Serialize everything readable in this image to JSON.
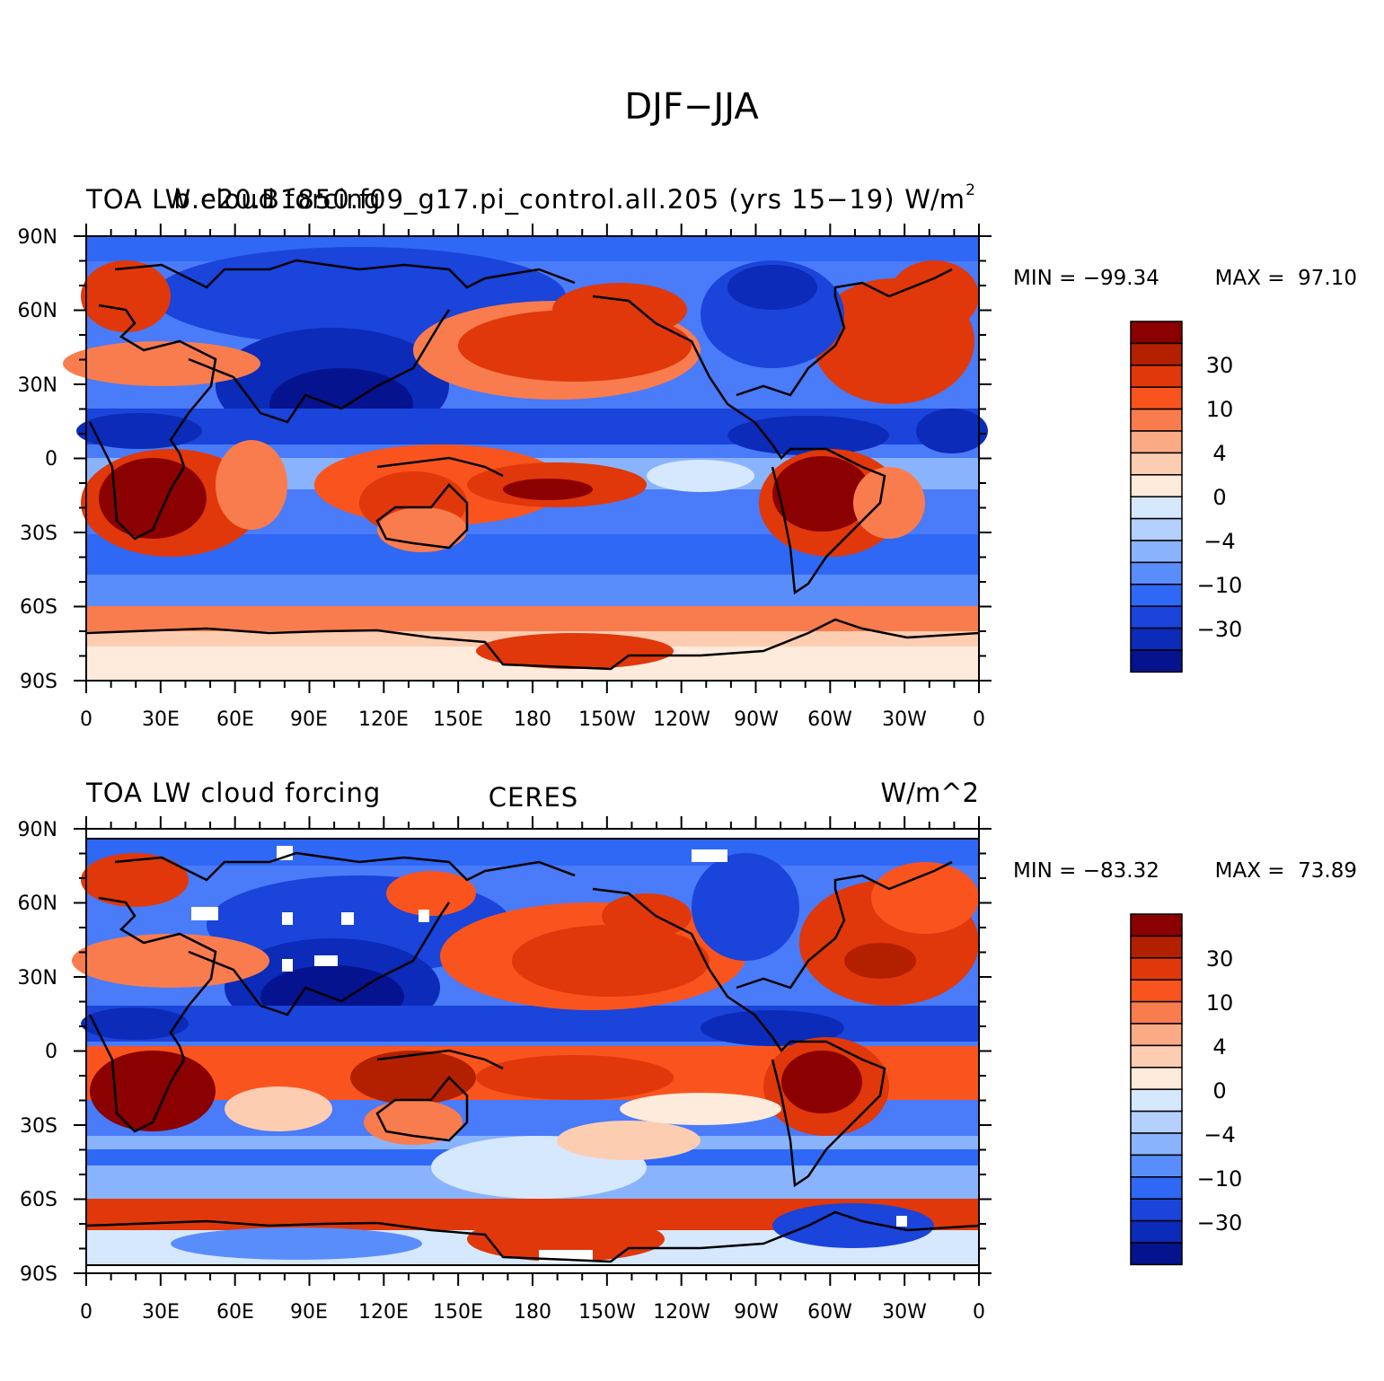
{
  "title": "DJF−JJA",
  "colorbar": {
    "colors": [
      "#8b0000",
      "#b22000",
      "#e0380a",
      "#fa541e",
      "#f97c4e",
      "#fbaa86",
      "#fdcdb2",
      "#feebdc",
      "#d6e8fe",
      "#b4d0fe",
      "#8ab3fd",
      "#5a8dfc",
      "#2f68f5",
      "#1a44da",
      "#0b2bb8",
      "#05138f"
    ],
    "labels": [
      "30",
      "10",
      "4",
      "0",
      "−4",
      "−10",
      "−30"
    ]
  },
  "axes": {
    "lat_labels": [
      "90N",
      "60N",
      "30N",
      "0",
      "30S",
      "60S",
      "90S"
    ],
    "lon_labels": [
      "0",
      "30E",
      "60E",
      "90E",
      "120E",
      "150E",
      "180",
      "150W",
      "120W",
      "90W",
      "60W",
      "30W",
      "0"
    ]
  },
  "panels": [
    {
      "left_title": "TOA LW cloud forcing",
      "center_title": "b.e20.B1850.f09_g17.pi_control.all.205 (yrs 15−19)",
      "right_title": "W/m",
      "right_sup": "2",
      "min_label": "MIN = −99.34",
      "max_label": "MAX =  97.10"
    },
    {
      "left_title": "TOA LW cloud forcing",
      "center_title": "CERES",
      "right_title": "W/m^2",
      "right_sup": "",
      "min_label": "MIN = −83.32",
      "max_label": "MAX =  73.89"
    }
  ]
}
